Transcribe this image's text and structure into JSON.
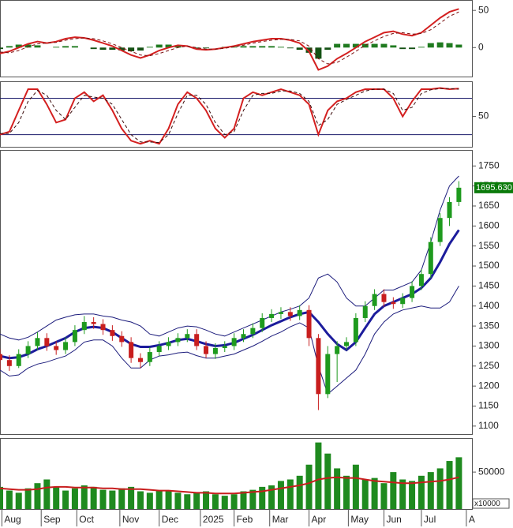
{
  "chart_data": [
    {
      "type": "macd",
      "xlim": [
        0,
        252
      ],
      "ylim": [
        -39,
        64
      ],
      "yticks": [
        0,
        50
      ],
      "x": [
        0,
        5,
        10,
        15,
        20,
        25,
        30,
        35,
        40,
        45,
        50,
        55,
        60,
        65,
        70,
        75,
        80,
        85,
        90,
        95,
        100,
        105,
        110,
        115,
        120,
        125,
        130,
        135,
        140,
        145,
        150,
        155,
        160,
        165,
        170,
        175,
        180,
        185,
        190,
        195,
        200,
        205,
        210,
        215,
        220,
        225,
        230,
        235,
        240,
        245
      ],
      "histogram": {
        "up_color": "#1f7a1f",
        "down_color": "#145214",
        "values": [
          -2,
          2,
          4,
          4,
          3,
          0,
          1,
          2,
          2,
          0,
          -2,
          -3,
          -3,
          -4,
          -5,
          -4,
          1,
          4,
          4,
          3,
          0,
          -2,
          -1,
          0,
          1,
          1,
          2,
          2,
          2,
          2,
          1,
          -1,
          -3,
          -7,
          -15,
          -3,
          5,
          5,
          5,
          5,
          5,
          5,
          3,
          -2,
          -2,
          1,
          6,
          7,
          6,
          4
        ]
      },
      "series": [
        {
          "color": "#d42020",
          "dashed": false,
          "values": [
            -8,
            -5,
            0,
            5,
            8,
            6,
            8,
            12,
            14,
            13,
            10,
            6,
            2,
            -4,
            -10,
            -14,
            -10,
            -4,
            0,
            3,
            2,
            -2,
            -3,
            -2,
            0,
            2,
            5,
            8,
            10,
            12,
            12,
            10,
            6,
            -5,
            -30,
            -25,
            -15,
            -8,
            0,
            8,
            14,
            20,
            22,
            18,
            16,
            20,
            30,
            40,
            48,
            52
          ]
        },
        {
          "color": "#7a1010",
          "dashed": true,
          "values": [
            -6,
            -7,
            -4,
            1,
            5,
            6,
            7,
            10,
            12,
            13,
            12,
            9,
            5,
            0,
            -5,
            -10,
            -11,
            -8,
            -4,
            0,
            2,
            0,
            -2,
            -2,
            -1,
            1,
            3,
            6,
            8,
            10,
            11,
            11,
            9,
            2,
            -15,
            -22,
            -20,
            -13,
            -5,
            3,
            9,
            15,
            19,
            20,
            18,
            19,
            24,
            33,
            42,
            48
          ]
        }
      ]
    },
    {
      "type": "stochastic",
      "xlim": [
        0,
        252
      ],
      "ylim": [
        0,
        108
      ],
      "yticks": [
        50
      ],
      "levels": [
        20,
        80
      ],
      "level_color": "#1a1a6a",
      "x": [
        0,
        5,
        10,
        15,
        20,
        25,
        30,
        35,
        40,
        45,
        50,
        55,
        60,
        65,
        70,
        75,
        80,
        85,
        90,
        95,
        100,
        105,
        110,
        115,
        120,
        125,
        130,
        135,
        140,
        145,
        150,
        155,
        160,
        165,
        170,
        175,
        180,
        185,
        190,
        195,
        200,
        205,
        210,
        215,
        220,
        225,
        230,
        235,
        240,
        245
      ],
      "series": [
        {
          "color": "#d42020",
          "dashed": false,
          "values": [
            20,
            25,
            60,
            95,
            95,
            70,
            40,
            45,
            80,
            90,
            75,
            85,
            60,
            30,
            10,
            5,
            10,
            5,
            30,
            70,
            90,
            80,
            60,
            30,
            15,
            30,
            80,
            90,
            85,
            90,
            95,
            90,
            85,
            70,
            20,
            60,
            75,
            80,
            90,
            95,
            95,
            95,
            80,
            50,
            75,
            95,
            95,
            97,
            95,
            96
          ]
        },
        {
          "color": "#3a0a0a",
          "dashed": true,
          "values": [
            22,
            22,
            40,
            75,
            93,
            85,
            60,
            45,
            65,
            85,
            82,
            80,
            70,
            45,
            20,
            8,
            8,
            7,
            20,
            55,
            85,
            85,
            70,
            40,
            20,
            25,
            60,
            85,
            88,
            88,
            92,
            92,
            88,
            75,
            35,
            45,
            70,
            78,
            85,
            92,
            95,
            95,
            88,
            60,
            65,
            88,
            94,
            96,
            96,
            95
          ]
        }
      ]
    },
    {
      "type": "candlestick",
      "xlim": [
        0,
        252
      ],
      "ylim": [
        1080,
        1790
      ],
      "yticks": [
        1100,
        1150,
        1200,
        1250,
        1300,
        1350,
        1400,
        1450,
        1500,
        1550,
        1600,
        1650,
        1700,
        1750
      ],
      "up_color": "#1e9a1e",
      "down_color": "#c81e1e",
      "last_price": {
        "value": 1695.63,
        "label": "1695.630"
      },
      "last_price_color": "#0a7a0a",
      "x": [
        0,
        5,
        10,
        15,
        20,
        25,
        30,
        35,
        40,
        45,
        50,
        55,
        60,
        65,
        70,
        75,
        80,
        85,
        90,
        95,
        100,
        105,
        110,
        115,
        120,
        125,
        130,
        135,
        140,
        145,
        150,
        155,
        160,
        165,
        170,
        175,
        180,
        185,
        190,
        195,
        200,
        205,
        210,
        215,
        220,
        225,
        230,
        235,
        240,
        245
      ],
      "open": [
        1280,
        1265,
        1250,
        1280,
        1300,
        1320,
        1300,
        1290,
        1310,
        1340,
        1360,
        1355,
        1340,
        1325,
        1310,
        1270,
        1260,
        1285,
        1300,
        1310,
        1320,
        1330,
        1300,
        1280,
        1295,
        1300,
        1320,
        1330,
        1345,
        1370,
        1380,
        1385,
        1375,
        1390,
        1320,
        1180,
        1280,
        1300,
        1310,
        1370,
        1400,
        1430,
        1410,
        1405,
        1420,
        1450,
        1480,
        1560,
        1620,
        1660
      ],
      "high": [
        1292,
        1277,
        1292,
        1312,
        1335,
        1332,
        1312,
        1322,
        1352,
        1375,
        1372,
        1367,
        1352,
        1337,
        1322,
        1282,
        1297,
        1312,
        1322,
        1332,
        1342,
        1342,
        1312,
        1307,
        1312,
        1332,
        1342,
        1357,
        1382,
        1392,
        1397,
        1397,
        1402,
        1402,
        1330,
        1300,
        1312,
        1322,
        1382,
        1412,
        1442,
        1442,
        1422,
        1432,
        1462,
        1492,
        1572,
        1632,
        1672,
        1712
      ],
      "low": [
        1240,
        1238,
        1245,
        1270,
        1290,
        1288,
        1278,
        1280,
        1300,
        1330,
        1343,
        1328,
        1313,
        1298,
        1258,
        1245,
        1250,
        1275,
        1290,
        1300,
        1310,
        1290,
        1270,
        1268,
        1285,
        1290,
        1310,
        1320,
        1335,
        1360,
        1368,
        1363,
        1365,
        1300,
        1140,
        1170,
        1210,
        1290,
        1300,
        1360,
        1390,
        1398,
        1393,
        1395,
        1410,
        1440,
        1470,
        1550,
        1600,
        1650
      ],
      "close": [
        1265,
        1250,
        1280,
        1300,
        1320,
        1300,
        1290,
        1310,
        1340,
        1360,
        1355,
        1340,
        1325,
        1310,
        1270,
        1260,
        1285,
        1300,
        1310,
        1320,
        1330,
        1300,
        1280,
        1295,
        1300,
        1320,
        1330,
        1345,
        1370,
        1380,
        1385,
        1375,
        1390,
        1320,
        1180,
        1280,
        1300,
        1310,
        1370,
        1400,
        1430,
        1410,
        1405,
        1420,
        1450,
        1480,
        1560,
        1620,
        1660,
        1695.63
      ],
      "series": [
        {
          "color": "#1c1c9c",
          "width": 3,
          "values": [
            1275,
            1270,
            1272,
            1280,
            1292,
            1300,
            1310,
            1320,
            1335,
            1345,
            1348,
            1345,
            1335,
            1320,
            1305,
            1298,
            1298,
            1302,
            1308,
            1315,
            1318,
            1312,
            1305,
            1300,
            1302,
            1308,
            1318,
            1328,
            1340,
            1352,
            1362,
            1372,
            1380,
            1385,
            1360,
            1330,
            1305,
            1290,
            1310,
            1345,
            1380,
            1400,
            1410,
            1420,
            1430,
            1445,
            1470,
            1510,
            1555,
            1590
          ]
        },
        {
          "color": "#1c1c7c",
          "width": 1,
          "values": [
            1330,
            1320,
            1315,
            1322,
            1335,
            1350,
            1365,
            1372,
            1378,
            1380,
            1380,
            1375,
            1372,
            1365,
            1360,
            1350,
            1330,
            1325,
            1335,
            1345,
            1350,
            1348,
            1340,
            1330,
            1325,
            1335,
            1345,
            1355,
            1365,
            1375,
            1385,
            1392,
            1400,
            1420,
            1470,
            1480,
            1460,
            1420,
            1400,
            1400,
            1420,
            1440,
            1440,
            1450,
            1460,
            1490,
            1560,
            1640,
            1700,
            1725
          ]
        },
        {
          "color": "#1c1c7c",
          "width": 1,
          "values": [
            1240,
            1225,
            1228,
            1245,
            1255,
            1260,
            1268,
            1275,
            1290,
            1310,
            1315,
            1315,
            1300,
            1270,
            1245,
            1245,
            1265,
            1275,
            1278,
            1283,
            1285,
            1276,
            1270,
            1270,
            1275,
            1280,
            1290,
            1300,
            1312,
            1325,
            1335,
            1348,
            1358,
            1345,
            1250,
            1180,
            1200,
            1220,
            1240,
            1280,
            1330,
            1360,
            1380,
            1390,
            1395,
            1400,
            1395,
            1395,
            1410,
            1450
          ]
        }
      ]
    },
    {
      "type": "bar",
      "xlim": [
        0,
        252
      ],
      "ylim": [
        0,
        96000
      ],
      "yticks": [
        50000
      ],
      "multiplier_label": "x10000",
      "color": "#1f8a1f",
      "x": [
        0,
        5,
        10,
        15,
        20,
        25,
        30,
        35,
        40,
        45,
        50,
        55,
        60,
        65,
        70,
        75,
        80,
        85,
        90,
        95,
        100,
        105,
        110,
        115,
        120,
        125,
        130,
        135,
        140,
        145,
        150,
        155,
        160,
        165,
        170,
        175,
        180,
        185,
        190,
        195,
        200,
        205,
        210,
        215,
        220,
        225,
        230,
        235,
        240,
        245
      ],
      "values": [
        30000,
        25000,
        22000,
        28000,
        35000,
        40000,
        30000,
        25000,
        28000,
        32000,
        30000,
        26000,
        25000,
        28000,
        30000,
        24000,
        22000,
        25000,
        24000,
        22000,
        20000,
        22000,
        24000,
        20000,
        18000,
        20000,
        24000,
        26000,
        30000,
        32000,
        38000,
        40000,
        45000,
        60000,
        90000,
        75000,
        55000,
        45000,
        60000,
        40000,
        42000,
        35000,
        50000,
        40000,
        38000,
        45000,
        50000,
        55000,
        65000,
        70000
      ],
      "series": [
        {
          "color": "#c81e1e",
          "values": [
            28000,
            27000,
            26000,
            26000,
            27000,
            29000,
            30000,
            30000,
            29000,
            29000,
            29000,
            28000,
            28000,
            27000,
            27000,
            27000,
            26000,
            25000,
            25000,
            24000,
            23000,
            22000,
            22000,
            21000,
            21000,
            21000,
            22000,
            23000,
            24000,
            26000,
            28000,
            30000,
            32000,
            35000,
            40000,
            42000,
            43000,
            42000,
            42000,
            40000,
            38000,
            37000,
            36000,
            35000,
            35000,
            36000,
            37000,
            38000,
            40000,
            43000
          ]
        }
      ],
      "xticks": [
        {
          "value": 1,
          "label": "Aug"
        },
        {
          "value": 22,
          "label": "Sep"
        },
        {
          "value": 41,
          "label": "Oct"
        },
        {
          "value": 64,
          "label": "Nov"
        },
        {
          "value": 85,
          "label": "Dec"
        },
        {
          "value": 107,
          "label": "2025"
        },
        {
          "value": 125,
          "label": "Feb"
        },
        {
          "value": 144,
          "label": "Mar"
        },
        {
          "value": 165,
          "label": "Apr"
        },
        {
          "value": 186,
          "label": "May"
        },
        {
          "value": 205,
          "label": "Jun"
        },
        {
          "value": 225,
          "label": "Jul"
        },
        {
          "value": 249,
          "label": "A"
        }
      ]
    }
  ]
}
